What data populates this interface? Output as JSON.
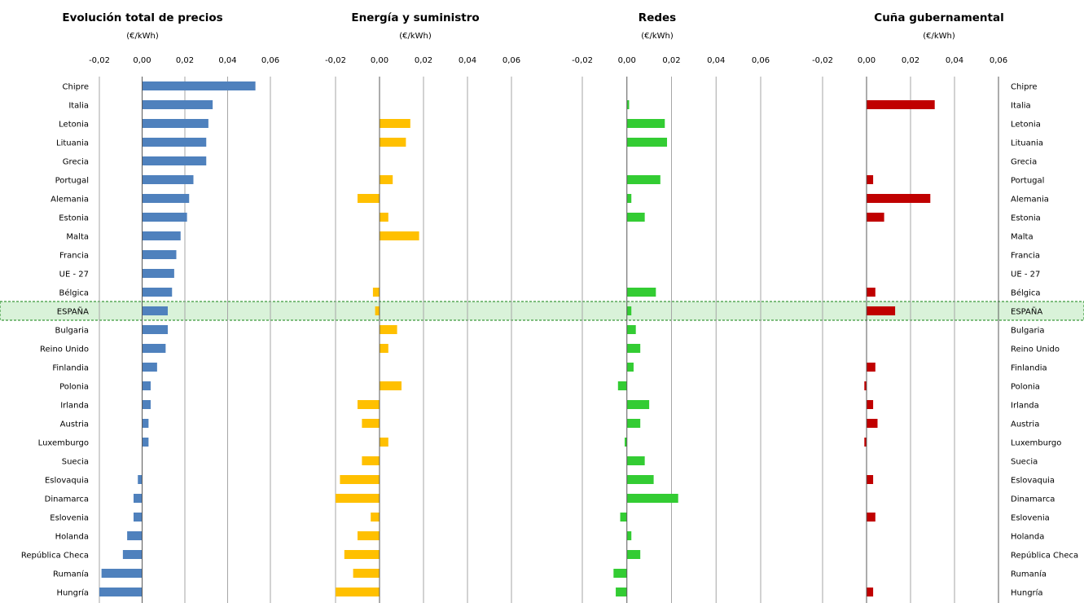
{
  "categories": [
    "Chipre",
    "Italia",
    "Letonia",
    "Lituania",
    "Grecia",
    "Portugal",
    "Alemania",
    "Estonia",
    "Malta",
    "Francia",
    "UE - 27",
    "Bélgica",
    "ESPAÑA",
    "Bulgaria",
    "Reino Unido",
    "Finlandia",
    "Polonia",
    "Irlanda",
    "Austria",
    "Luxemburgo",
    "Suecia",
    "Eslovaquia",
    "Dinamarca",
    "Eslovenia",
    "Holanda",
    "República Checa",
    "Rumanía",
    "Hungría"
  ],
  "highlight_category": "ESPAÑA",
  "highlight_color": "#d9f2d9",
  "highlight_border": "#3c9a3c",
  "chart_data": [
    {
      "type": "bar",
      "orientation": "horizontal",
      "title": "Evolución total de precios",
      "unit": "(€/kWh)",
      "color": "#4f81bd",
      "xlim": [
        -0.02,
        0.06
      ],
      "ticks": [
        "-0,02",
        "0,00",
        "0,02",
        "0,04",
        "0,06"
      ],
      "grid": true,
      "values": [
        0.053,
        0.033,
        0.031,
        0.03,
        0.03,
        0.024,
        0.022,
        0.021,
        0.018,
        0.016,
        0.015,
        0.014,
        0.012,
        0.012,
        0.011,
        0.007,
        0.004,
        0.004,
        0.003,
        0.003,
        0.0,
        -0.002,
        -0.004,
        -0.004,
        -0.007,
        -0.009,
        -0.019,
        -0.02
      ]
    },
    {
      "type": "bar",
      "orientation": "horizontal",
      "title": "Energía y suministro",
      "unit": "(€/kWh)",
      "color": "#ffc000",
      "xlim": [
        -0.02,
        0.06
      ],
      "ticks": [
        "-0,02",
        "0,00",
        "0,02",
        "0,04",
        "0,06"
      ],
      "grid": true,
      "values": [
        0.0,
        0.0,
        0.014,
        0.012,
        0.0,
        0.006,
        -0.01,
        0.004,
        0.018,
        0.0,
        0.0,
        -0.003,
        -0.002,
        0.008,
        0.004,
        0.0,
        0.01,
        -0.01,
        -0.008,
        0.004,
        -0.008,
        -0.018,
        -0.02,
        -0.004,
        -0.01,
        -0.016,
        -0.012,
        -0.02
      ]
    },
    {
      "type": "bar",
      "orientation": "horizontal",
      "title": "Redes",
      "unit": "(€/kWh)",
      "color": "#33cc33",
      "xlim": [
        -0.02,
        0.06
      ],
      "ticks": [
        "-0,02",
        "0,00",
        "0,02",
        "0,04",
        "0,06"
      ],
      "grid": true,
      "values": [
        0.0,
        0.001,
        0.017,
        0.018,
        0.0,
        0.015,
        0.002,
        0.008,
        0.0,
        0.0,
        0.0,
        0.013,
        0.002,
        0.004,
        0.006,
        0.003,
        -0.004,
        0.01,
        0.006,
        -0.001,
        0.008,
        0.012,
        0.023,
        -0.003,
        0.002,
        0.006,
        -0.006,
        -0.005
      ]
    },
    {
      "type": "bar",
      "orientation": "horizontal",
      "title": "Cuña gubernamental",
      "unit": "(€/kWh)",
      "color": "#c00000",
      "xlim": [
        -0.02,
        0.06
      ],
      "ticks": [
        "-0,02",
        "0,00",
        "0,02",
        "0,04",
        "0,06"
      ],
      "grid": true,
      "values": [
        0.0,
        0.031,
        0.0,
        0.0,
        0.0,
        0.003,
        0.029,
        0.008,
        0.0,
        0.0,
        0.0,
        0.004,
        0.013,
        0.0,
        0.0,
        0.004,
        -0.001,
        0.003,
        0.005,
        -0.001,
        0.0,
        0.003,
        0.0,
        0.004,
        0.0,
        0.0,
        0.0,
        0.003
      ]
    }
  ]
}
